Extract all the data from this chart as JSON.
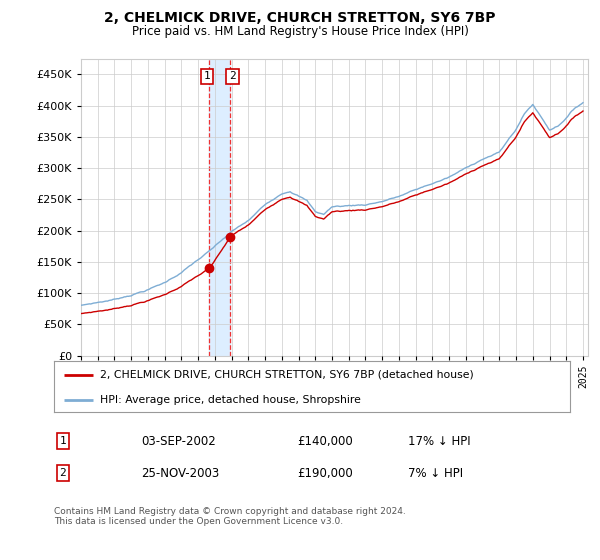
{
  "title": "2, CHELMICK DRIVE, CHURCH STRETTON, SY6 7BP",
  "subtitle": "Price paid vs. HM Land Registry's House Price Index (HPI)",
  "legend_entry1": "2, CHELMICK DRIVE, CHURCH STRETTON, SY6 7BP (detached house)",
  "legend_entry2": "HPI: Average price, detached house, Shropshire",
  "transaction1_date": "03-SEP-2002",
  "transaction1_price": 140000,
  "transaction1_hpi": "17% ↓ HPI",
  "transaction2_date": "25-NOV-2003",
  "transaction2_price": 190000,
  "transaction2_hpi": "7% ↓ HPI",
  "footer": "Contains HM Land Registry data © Crown copyright and database right 2024.\nThis data is licensed under the Open Government Licence v3.0.",
  "hpi_color": "#7eadd4",
  "price_color": "#cc0000",
  "marker_color": "#cc0000",
  "vline_color": "#ee3333",
  "vband_color": "#ddeeff",
  "background_color": "#ffffff",
  "grid_color": "#cccccc",
  "ylim": [
    0,
    475000
  ],
  "yticks": [
    0,
    50000,
    100000,
    150000,
    200000,
    250000,
    300000,
    350000,
    400000,
    450000
  ],
  "year_start": 1995,
  "year_end": 2025,
  "transaction1_year": 2002.67,
  "transaction2_year": 2003.9
}
